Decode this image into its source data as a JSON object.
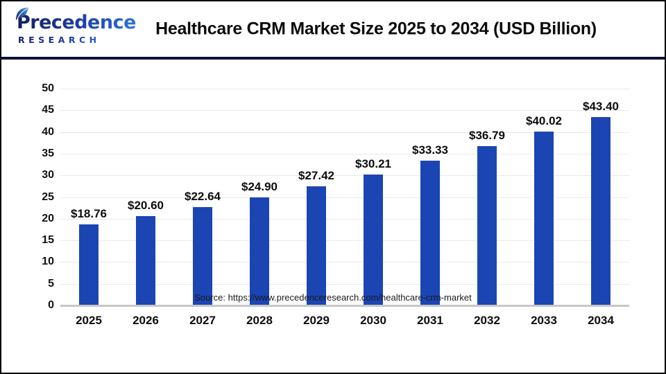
{
  "header": {
    "logo": {
      "line1": "Precedence",
      "line2": "RESEARCH"
    },
    "title": "Healthcare CRM Market Size 2025 to 2034 (USD Billion)"
  },
  "chart_data": {
    "type": "bar",
    "title": "Healthcare CRM Market Size 2025 to 2034 (USD Billion)",
    "categories": [
      "2025",
      "2026",
      "2027",
      "2028",
      "2029",
      "2030",
      "2031",
      "2032",
      "2033",
      "2034"
    ],
    "values": [
      18.76,
      20.6,
      22.64,
      24.9,
      27.42,
      30.21,
      33.33,
      36.79,
      40.02,
      43.4
    ],
    "value_labels": [
      "$18.76",
      "$20.60",
      "$22.64",
      "$24.90",
      "$27.42",
      "$30.21",
      "$33.33",
      "$36.79",
      "$40.02",
      "$43.40"
    ],
    "xlabel": "",
    "ylabel": "",
    "ylim": [
      0,
      50
    ],
    "yticks": [
      0,
      5,
      10,
      15,
      20,
      25,
      30,
      35,
      40,
      45,
      50
    ],
    "grid": true,
    "legend": "none",
    "bar_color": "#1c45b4"
  },
  "footer": {
    "source": "Source: https://www.precedenceresearch.com/healthcare-crm-market"
  },
  "colors": {
    "bar": "#1c45b4",
    "divider": "#0e1238",
    "gridline": "#e9e9e9",
    "axis_line": "#c7c7c7",
    "logo_dark": "#151f5e",
    "logo_light": "#2f72dd"
  }
}
